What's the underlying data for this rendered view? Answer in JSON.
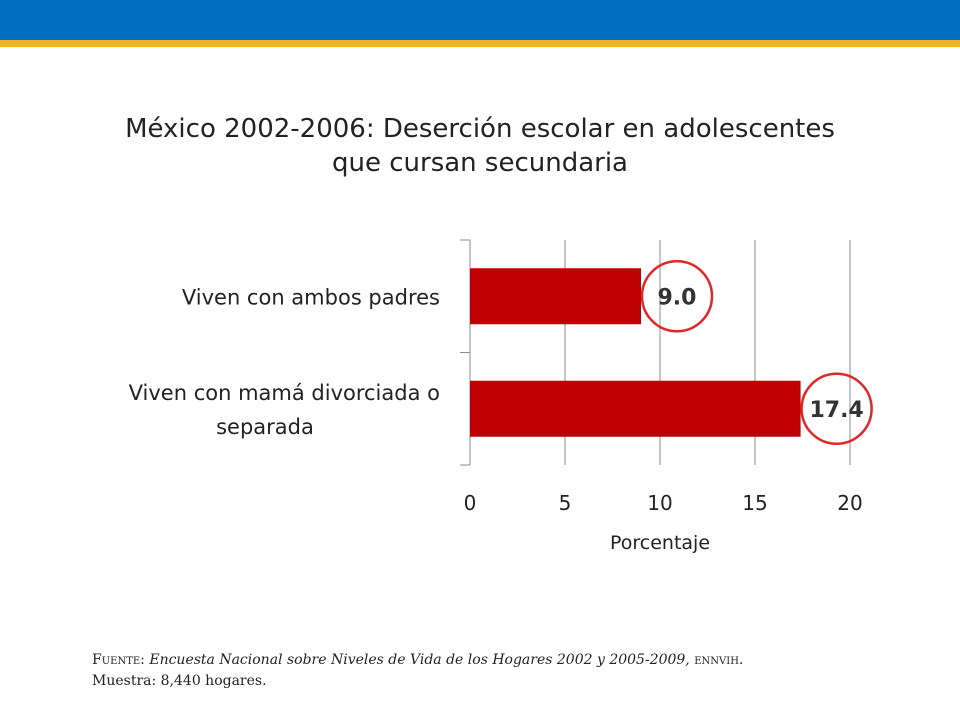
{
  "header": {
    "brand_color": "#0070c0",
    "accent_color": "#f0b323"
  },
  "title": {
    "line1": "México 2002-2006: Deserción escolar en adolescentes",
    "line2": "que cursan secundaria"
  },
  "chart_data": {
    "type": "bar",
    "orientation": "horizontal",
    "title": "México 2002-2006: Deserción escolar en adolescentes que cursan secundaria",
    "categories": [
      [
        "Viven con ambos padres"
      ],
      [
        "Viven con mamá divorciada o",
        "separada"
      ]
    ],
    "values": [
      9.0,
      17.4
    ],
    "value_labels": [
      "9.0",
      "17.4"
    ],
    "xlabel": "Porcentaje",
    "ylabel": "",
    "xlim": [
      0,
      20
    ],
    "xticks": [
      "0",
      "5",
      "10",
      "15",
      "20"
    ],
    "grid": true,
    "bar_color": "#c00000",
    "highlight_color": "#e0282a",
    "value_labels_circled": true
  },
  "source": {
    "label": "Fuente:",
    "citation": "Encuesta Nacional sobre Niveles de Vida de los Hogares 2002 y 2005-2009,",
    "acronym": "ennvih.",
    "sample": "Muestra: 8,440 hogares."
  }
}
